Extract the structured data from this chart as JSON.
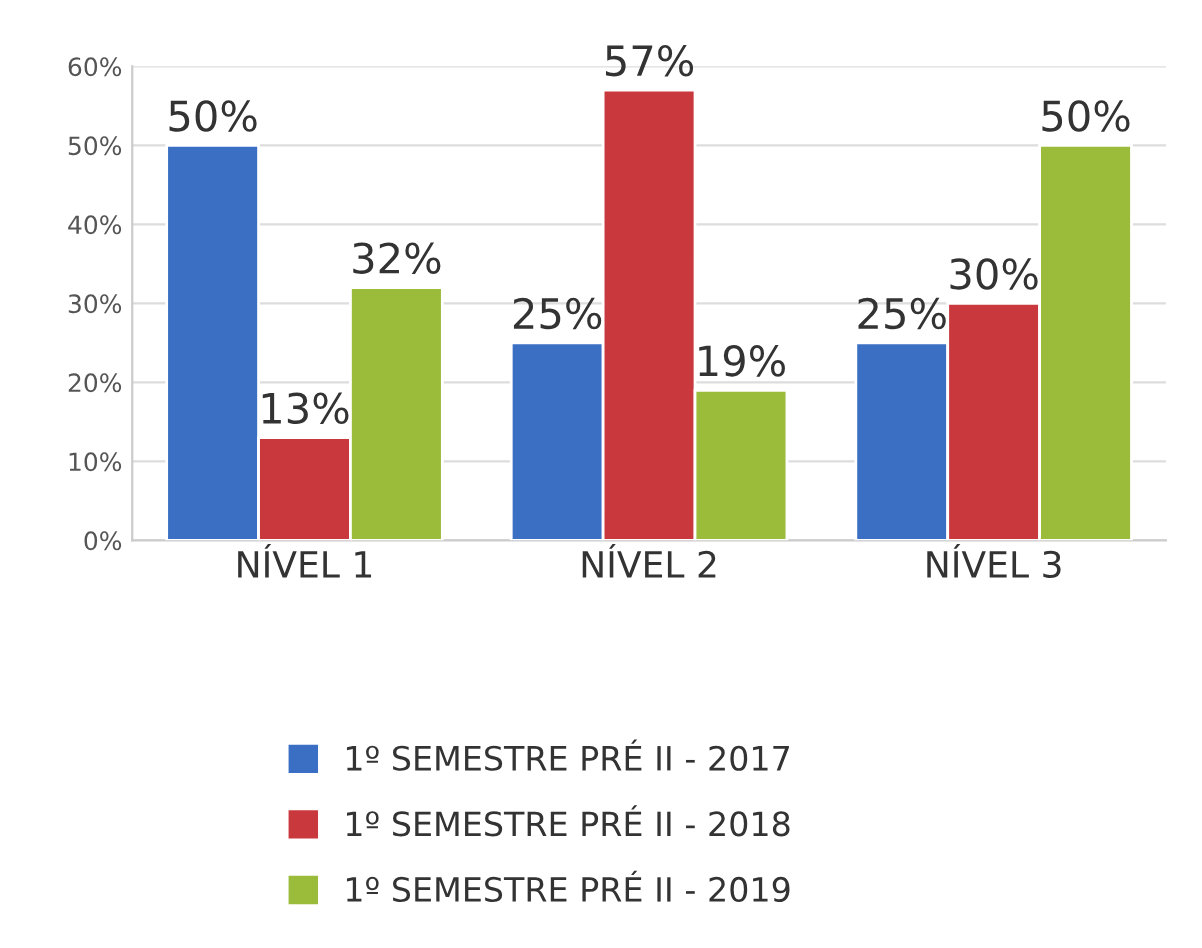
{
  "chart_data": {
    "type": "bar",
    "categories": [
      "NÍVEL 1",
      "NÍVEL 2",
      "NÍVEL 3"
    ],
    "series": [
      {
        "name": "1º SEMESTRE PRÉ II - 2017",
        "color": "#3a6fc4",
        "values": [
          50,
          25,
          25
        ],
        "value_labels": [
          "50%",
          "25%",
          "25%"
        ]
      },
      {
        "name": "1º SEMESTRE PRÉ II - 2018",
        "color": "#c8383d",
        "values": [
          13,
          57,
          30
        ],
        "value_labels": [
          "13%",
          "57%",
          "30%"
        ]
      },
      {
        "name": "1º SEMESTRE PRÉ II - 2019",
        "color": "#9bbb3b",
        "values": [
          32,
          19,
          50
        ],
        "value_labels": [
          "32%",
          "19%",
          "50%"
        ]
      }
    ],
    "ylim": [
      0,
      60
    ],
    "yticks": [
      {
        "value": 0,
        "label": "0%"
      },
      {
        "value": 10,
        "label": "10%"
      },
      {
        "value": 20,
        "label": "20%"
      },
      {
        "value": 30,
        "label": "30%"
      },
      {
        "value": 40,
        "label": "40%"
      },
      {
        "value": 50,
        "label": "50%"
      },
      {
        "value": 60,
        "label": "60%"
      }
    ],
    "grid": "y",
    "legend": "bottom"
  }
}
